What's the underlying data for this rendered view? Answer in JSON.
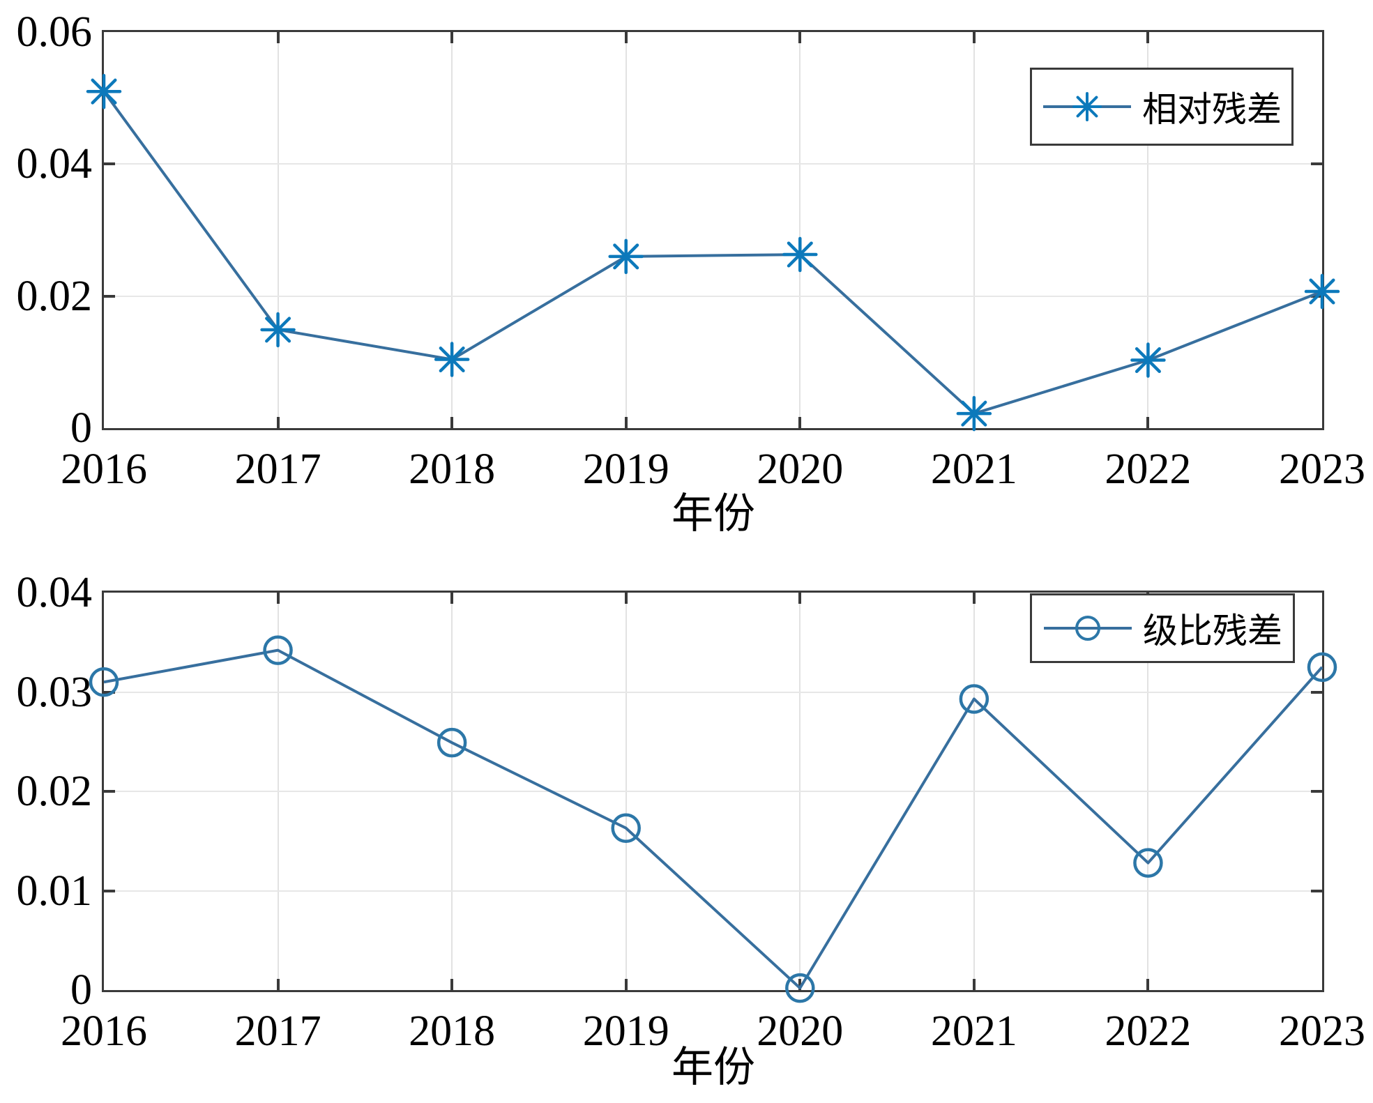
{
  "figure": {
    "background": "#ffffff"
  },
  "colors": {
    "axis": "#3a3a3a",
    "grid": "#e4e4e4",
    "line": "#376f9e",
    "marker_asterisk": "#0c79bb",
    "marker_circle": "#2c77a8",
    "text": "#000000",
    "legend_border": "#3a3a3a",
    "legend_background": "#ffffff"
  },
  "chart_data": [
    {
      "type": "line",
      "title": "",
      "xlabel": "年份",
      "ylabel": "",
      "categories": [
        "2016",
        "2017",
        "2018",
        "2019",
        "2020",
        "2021",
        "2022",
        "2023"
      ],
      "series": [
        {
          "name": "相对残差",
          "marker": "asterisk",
          "values": [
            0.051,
            0.0149,
            0.0104,
            0.026,
            0.0263,
            0.0022,
            0.0103,
            0.0207
          ]
        }
      ],
      "ylim": [
        0,
        0.06
      ],
      "yticks": [
        0,
        0.02,
        0.04,
        0.06
      ],
      "ytick_labels": [
        "0",
        "0.02",
        "0.04",
        "0.06"
      ],
      "grid": true,
      "legend_position": "top-right"
    },
    {
      "type": "line",
      "title": "",
      "xlabel": "年份",
      "ylabel": "",
      "categories": [
        "2016",
        "2017",
        "2018",
        "2019",
        "2020",
        "2021",
        "2022",
        "2023"
      ],
      "series": [
        {
          "name": "级比残差",
          "marker": "circle",
          "values": [
            0.031,
            0.0342,
            0.0249,
            0.0163,
            0.0002,
            0.0293,
            0.0128,
            0.0325
          ]
        }
      ],
      "ylim": [
        0,
        0.04
      ],
      "yticks": [
        0,
        0.01,
        0.02,
        0.03,
        0.04
      ],
      "ytick_labels": [
        "0",
        "0.01",
        "0.02",
        "0.03",
        "0.04"
      ],
      "grid": true,
      "legend_position": "top-right"
    }
  ]
}
